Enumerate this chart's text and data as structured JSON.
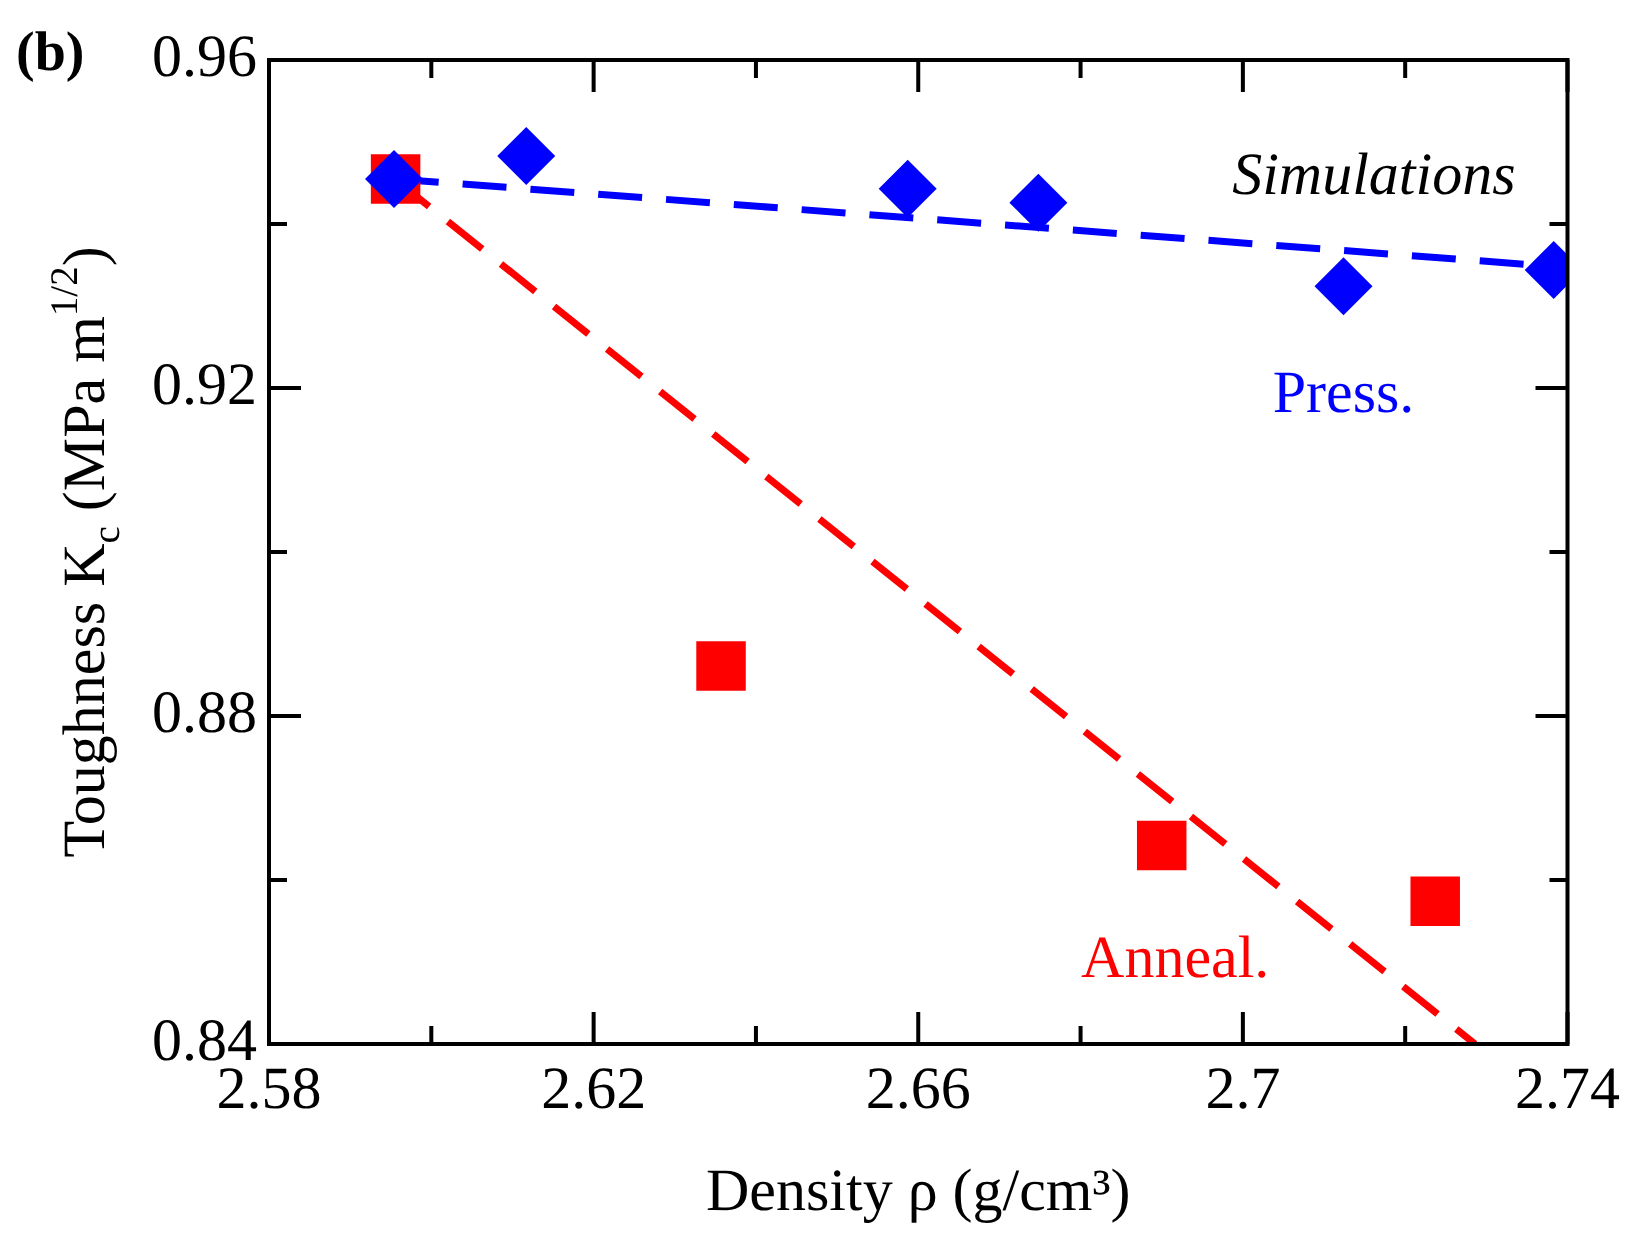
{
  "chart_data": {
    "type": "scatter",
    "xlabel": "Density ρ (g/cm³)",
    "ylabel": "Toughness K$_{c}$ (MPa m$^{1/2}$)",
    "annotations": [
      "(b)",
      "Simulations"
    ],
    "x": [
      2.5954,
      2.6117,
      2.6587,
      2.6748,
      2.7124,
      2.7383
    ],
    "series": [
      {
        "name": "Press.",
        "color": "#0000ff",
        "marker": "diamond",
        "values": [
          0.9455,
          0.9483,
          0.9443,
          0.9426,
          0.9324,
          0.9344
        ]
      },
      {
        "name": "Anneal.",
        "color": "#ff0000",
        "marker": "square",
        "x": [
          2.5956,
          2.6357,
          2.69,
          2.7237
        ],
        "values": [
          0.9455,
          0.8861,
          0.8642,
          0.8574
        ]
      },
      {
        "type": "line",
        "color": "#0000ff",
        "marker": "none",
        "line_style": "dashed",
        "x": [
          2.5955,
          2.74
        ],
        "values": [
          0.9455,
          0.9347
        ]
      },
      {
        "type": "line",
        "color": "#ff0000",
        "marker": "none",
        "line_style": "dashed",
        "x": [
          2.5955,
          2.7286
        ],
        "values": [
          0.9455,
          0.84
        ]
      }
    ],
    "xlim": [
      2.58,
      2.74
    ],
    "ylim": [
      0.84,
      0.96
    ],
    "xticks": [
      2.58,
      {
        "value": 2.6,
        "label": null
      },
      2.62,
      {
        "value": 2.64,
        "label": null
      },
      2.66,
      {
        "value": 2.68,
        "label": null
      },
      {
        "value": 2.7,
        "label": "2.7"
      },
      {
        "value": 2.72,
        "label": null
      },
      2.74
    ],
    "yticks": [
      0.84,
      {
        "value": 0.86,
        "label": null
      },
      0.88,
      {
        "value": 0.9,
        "label": null
      },
      0.92,
      {
        "value": 0.94,
        "label": null
      },
      0.96
    ],
    "grid": false,
    "legend": false
  }
}
